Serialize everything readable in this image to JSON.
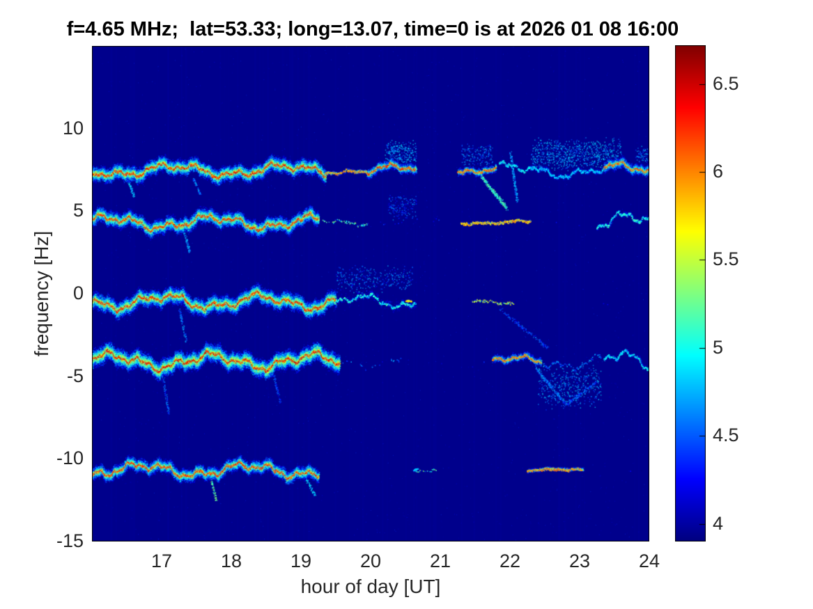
{
  "chart_data": {
    "type": "heatmap",
    "subtype": "doppler-spectrogram",
    "title": "f=4.65 MHz;  lat=53.33; long=13.07, time=0 is at 2026 01 08 16:00",
    "xlabel": "hour of day [UT]",
    "ylabel": "frequency [Hz]",
    "xlim": [
      16,
      24
    ],
    "ylim": [
      -15,
      15
    ],
    "xticks": [
      17,
      18,
      19,
      20,
      21,
      22,
      23,
      24
    ],
    "yticks": [
      10,
      5,
      0,
      -5,
      -10,
      -15
    ],
    "grid": false,
    "colormap": "jet",
    "background_value": 3.93,
    "colorbar": {
      "position": "right",
      "min": 3.9,
      "max": 6.72,
      "ticks": [
        4,
        4.5,
        5,
        5.5,
        6,
        6.5
      ]
    },
    "traces": [
      {
        "name": "doppler-trace-7.5Hz",
        "base": 7.5,
        "seed": 11,
        "wander": [
          [
            0.28,
            1.6
          ],
          [
            0.17,
            0.55
          ],
          [
            0.09,
            0.22
          ],
          [
            0.05,
            0.09
          ]
        ],
        "segments": [
          [
            16.0,
            19.35,
            6.55,
            0.5,
            1.0,
            1
          ],
          [
            19.35,
            19.95,
            6.1,
            0.15,
            0.5,
            0.5
          ],
          [
            19.95,
            20.65,
            6.4,
            0.35,
            0.8,
            0.8
          ],
          [
            20.65,
            21.2,
            4.4,
            0.15,
            0.05,
            0.5
          ],
          [
            21.25,
            21.8,
            6.3,
            0.3,
            0.65,
            0.7
          ],
          [
            21.85,
            22.3,
            5.1,
            0.45,
            0.4,
            1
          ],
          [
            22.3,
            23.35,
            5.0,
            0.75,
            0.55,
            1
          ],
          [
            23.35,
            24.0,
            6.3,
            0.4,
            0.8,
            1
          ]
        ]
      },
      {
        "name": "doppler-trace-4.4Hz",
        "base": 4.35,
        "seed": 23,
        "wander": [
          [
            0.3,
            1.5
          ],
          [
            0.18,
            0.5
          ],
          [
            0.09,
            0.2
          ],
          [
            0.05,
            0.09
          ]
        ],
        "segments": [
          [
            16.0,
            19.25,
            6.5,
            0.5,
            1.0,
            1
          ],
          [
            19.3,
            19.95,
            5.4,
            0.12,
            0.25,
            0.4
          ],
          [
            20.0,
            21.25,
            4.5,
            0.25,
            0.08,
            0.6
          ],
          [
            21.3,
            22.3,
            6.0,
            0.12,
            0.5,
            0.25
          ],
          [
            22.35,
            23.2,
            4.5,
            0.25,
            0.08,
            0.6
          ],
          [
            23.25,
            24.0,
            5.2,
            0.45,
            0.5,
            1.3
          ]
        ]
      },
      {
        "name": "doppler-trace--0.4Hz",
        "base": -0.45,
        "seed": 37,
        "wander": [
          [
            0.33,
            1.4
          ],
          [
            0.18,
            0.55
          ],
          [
            0.1,
            0.21
          ],
          [
            0.05,
            0.09
          ]
        ],
        "segments": [
          [
            16.0,
            19.5,
            6.55,
            0.55,
            1.0,
            1
          ],
          [
            19.5,
            20.65,
            5.2,
            0.85,
            0.35,
            0.9
          ],
          [
            20.65,
            21.4,
            4.4,
            0.3,
            0.05,
            0.6
          ],
          [
            21.45,
            22.05,
            5.8,
            0.12,
            0.3,
            0.25
          ],
          [
            22.1,
            24.0,
            4.4,
            0.35,
            0.05,
            0.8
          ]
        ]
      },
      {
        "name": "doppler-trace--4.0Hz",
        "base": -4.05,
        "seed": 53,
        "wander": [
          [
            0.35,
            1.45
          ],
          [
            0.2,
            0.5
          ],
          [
            0.1,
            0.2
          ],
          [
            0.05,
            0.09
          ]
        ],
        "segments": [
          [
            16.0,
            19.55,
            6.6,
            0.6,
            1.0,
            1
          ],
          [
            19.55,
            20.6,
            4.8,
            0.5,
            0.13,
            0.8
          ],
          [
            20.6,
            21.7,
            4.5,
            0.3,
            0.06,
            0.7
          ],
          [
            21.75,
            22.45,
            6.25,
            0.3,
            0.7,
            0.6
          ],
          [
            22.45,
            23.3,
            4.9,
            0.55,
            0.3,
            1
          ],
          [
            23.35,
            24.0,
            5.1,
            0.5,
            0.45,
            1.2
          ]
        ]
      },
      {
        "name": "doppler-trace--10.7Hz",
        "base": -10.65,
        "seed": 71,
        "wander": [
          [
            0.3,
            1.5
          ],
          [
            0.18,
            0.5
          ],
          [
            0.1,
            0.2
          ],
          [
            0.05,
            0.09
          ]
        ],
        "segments": [
          [
            16.0,
            19.25,
            6.45,
            0.45,
            0.95,
            1
          ],
          [
            19.3,
            20.25,
            4.4,
            0.15,
            0.04,
            0.5
          ],
          [
            20.55,
            20.95,
            5.4,
            0.08,
            0.2,
            0.25
          ],
          [
            22.25,
            23.05,
            6.15,
            0.15,
            0.8,
            0.2
          ],
          [
            23.1,
            24.0,
            4.35,
            0.2,
            0.04,
            0.5
          ]
        ]
      }
    ],
    "diffuse_patches": [
      [
        20.2,
        20.65,
        7.8,
        9.2,
        4.7,
        260
      ],
      [
        22.3,
        23.6,
        7.6,
        9.3,
        4.7,
        750
      ],
      [
        21.3,
        21.75,
        7.8,
        9.0,
        4.6,
        160
      ],
      [
        19.5,
        20.6,
        0.2,
        1.6,
        4.55,
        300
      ],
      [
        20.25,
        20.65,
        4.6,
        5.9,
        4.45,
        150
      ],
      [
        22.4,
        23.3,
        -6.8,
        -4.4,
        4.65,
        420
      ],
      [
        23.8,
        24.0,
        8.0,
        9.0,
        4.6,
        70
      ]
    ],
    "streaks": [
      [
        21.55,
        7.3,
        21.95,
        5.2,
        5.1,
        0.12,
        280
      ],
      [
        22.0,
        8.6,
        22.1,
        5.6,
        4.7,
        0.1,
        170
      ],
      [
        21.85,
        -0.9,
        22.55,
        -3.3,
        4.45,
        0.12,
        150
      ],
      [
        22.35,
        -4.4,
        22.8,
        -6.7,
        4.6,
        0.12,
        170
      ],
      [
        22.8,
        -6.7,
        23.25,
        -5.3,
        4.5,
        0.12,
        130
      ],
      [
        16.5,
        7.1,
        16.6,
        5.9,
        4.8,
        0.07,
        80
      ],
      [
        17.45,
        7.0,
        17.55,
        6.0,
        4.6,
        0.06,
        60
      ],
      [
        17.3,
        4.1,
        17.4,
        2.5,
        4.7,
        0.07,
        80
      ],
      [
        17.25,
        -0.9,
        17.35,
        -2.9,
        4.6,
        0.07,
        80
      ],
      [
        17.0,
        -4.6,
        17.1,
        -7.3,
        4.5,
        0.07,
        90
      ],
      [
        18.6,
        -4.8,
        18.7,
        -6.6,
        4.4,
        0.07,
        70
      ],
      [
        17.68,
        -10.9,
        17.78,
        -12.5,
        5.2,
        0.06,
        80
      ],
      [
        19.05,
        -11.0,
        19.2,
        -12.2,
        4.8,
        0.08,
        70
      ]
    ],
    "bright_marks": [
      [
        20.5,
        20.58,
        -0.4,
        5.9
      ],
      [
        20.62,
        20.68,
        -10.6,
        5.0
      ]
    ]
  },
  "colors": {
    "page_background": "#ffffff",
    "plot_background_navy": "#00008c",
    "axis_text": "#262626",
    "title_text": "#000000",
    "frame": "#000000"
  }
}
